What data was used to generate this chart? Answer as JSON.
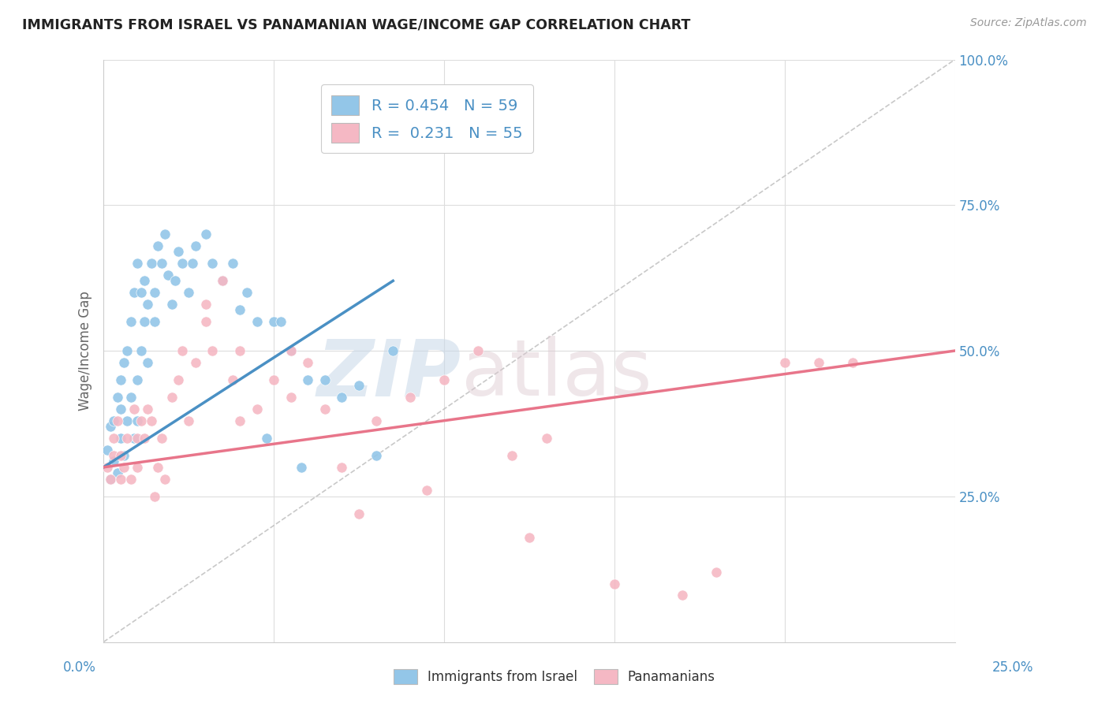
{
  "title": "IMMIGRANTS FROM ISRAEL VS PANAMANIAN WAGE/INCOME GAP CORRELATION CHART",
  "source": "Source: ZipAtlas.com",
  "ylabel": "Wage/Income Gap",
  "legend1_label": "R = 0.454   N = 59",
  "legend2_label": "R =  0.231   N = 55",
  "legend_bottom1": "Immigrants from Israel",
  "legend_bottom2": "Panamanians",
  "blue_color": "#93c6e8",
  "pink_color": "#f5b8c4",
  "blue_line_color": "#4a90c4",
  "pink_line_color": "#e8758a",
  "dashed_line_color": "#bbbbbb",
  "blue_points_x": [
    0.1,
    0.2,
    0.2,
    0.3,
    0.3,
    0.4,
    0.4,
    0.5,
    0.5,
    0.5,
    0.6,
    0.6,
    0.7,
    0.7,
    0.8,
    0.8,
    0.9,
    0.9,
    1.0,
    1.0,
    1.0,
    1.1,
    1.1,
    1.2,
    1.2,
    1.3,
    1.3,
    1.4,
    1.5,
    1.5,
    1.6,
    1.7,
    1.8,
    1.9,
    2.0,
    2.1,
    2.2,
    2.3,
    2.5,
    2.6,
    2.7,
    3.0,
    3.2,
    3.5,
    3.8,
    4.0,
    4.2,
    4.5,
    4.8,
    5.0,
    5.2,
    5.5,
    5.8,
    6.0,
    6.5,
    7.0,
    7.5,
    8.0,
    8.5
  ],
  "blue_points_y": [
    33,
    28,
    37,
    31,
    38,
    29,
    42,
    35,
    40,
    45,
    32,
    48,
    38,
    50,
    55,
    42,
    60,
    35,
    65,
    45,
    38,
    60,
    50,
    62,
    55,
    58,
    48,
    65,
    60,
    55,
    68,
    65,
    70,
    63,
    58,
    62,
    67,
    65,
    60,
    65,
    68,
    70,
    65,
    62,
    65,
    57,
    60,
    55,
    35,
    55,
    55,
    50,
    30,
    45,
    45,
    42,
    44,
    32,
    50
  ],
  "pink_points_x": [
    0.1,
    0.2,
    0.3,
    0.3,
    0.4,
    0.5,
    0.5,
    0.6,
    0.7,
    0.8,
    0.9,
    1.0,
    1.0,
    1.1,
    1.2,
    1.3,
    1.4,
    1.5,
    1.6,
    1.7,
    1.8,
    2.0,
    2.2,
    2.3,
    2.5,
    2.7,
    3.0,
    3.2,
    3.5,
    3.8,
    4.0,
    4.5,
    5.0,
    5.5,
    6.0,
    6.5,
    7.0,
    8.0,
    9.0,
    10.0,
    11.0,
    12.0,
    13.0,
    15.0,
    18.0,
    20.0,
    22.0,
    3.0,
    4.0,
    5.5,
    7.5,
    9.5,
    12.5,
    17.0,
    21.0
  ],
  "pink_points_y": [
    30,
    28,
    35,
    32,
    38,
    28,
    32,
    30,
    35,
    28,
    40,
    35,
    30,
    38,
    35,
    40,
    38,
    25,
    30,
    35,
    28,
    42,
    45,
    50,
    38,
    48,
    55,
    50,
    62,
    45,
    50,
    40,
    45,
    42,
    48,
    40,
    30,
    38,
    42,
    45,
    50,
    32,
    35,
    10,
    12,
    48,
    48,
    58,
    38,
    50,
    22,
    26,
    18,
    8,
    48
  ],
  "xmin": 0,
  "xmax": 25,
  "ymin": 0,
  "ymax": 100,
  "blue_trend": [
    0.0,
    8.5,
    30.0,
    62.0
  ],
  "pink_trend": [
    0.0,
    25.0,
    30.0,
    50.0
  ],
  "dash_trend": [
    0.0,
    25.0,
    0.0,
    100.0
  ],
  "figwidth": 14.06,
  "figheight": 8.92
}
